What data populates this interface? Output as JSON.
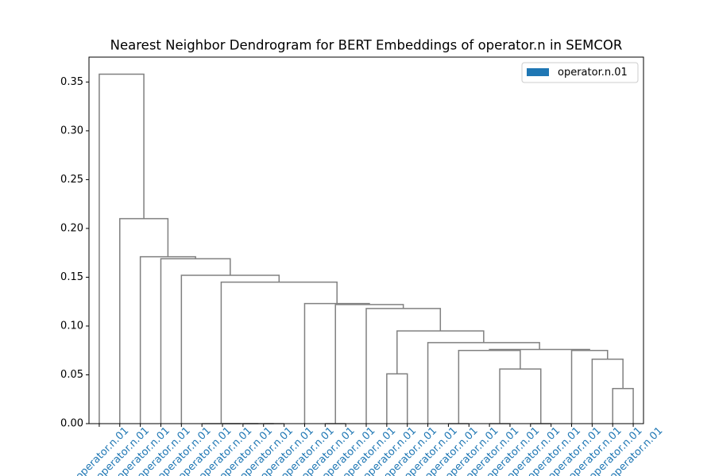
{
  "chart_data": {
    "type": "dendrogram",
    "title": "Nearest Neighbor Dendrogram for BERT Embeddings of operator.n in SEMCOR",
    "link_color": "#808080",
    "label_color": "#1f77b4",
    "legend": {
      "label": "operator.n.01",
      "color": "#1f77b4",
      "loc": "upper right"
    },
    "xlim": [
      0,
      270
    ],
    "ylim": [
      0,
      0.3755
    ],
    "yticks": [
      {
        "value": 0,
        "label": "0.00"
      },
      {
        "value": 0.05,
        "label": "0.05"
      },
      {
        "value": 0.1,
        "label": "0.10"
      },
      {
        "value": 0.15,
        "label": "0.15"
      },
      {
        "value": 0.2,
        "label": "0.20"
      },
      {
        "value": 0.25,
        "label": "0.25"
      },
      {
        "value": 0.3,
        "label": "0.30"
      },
      {
        "value": 0.35,
        "label": "0.35"
      }
    ],
    "xticks": [
      {
        "value": 5,
        "label": "operator.n.01"
      },
      {
        "value": 15,
        "label": "operator.n.01"
      },
      {
        "value": 25,
        "label": "operator.n.01"
      },
      {
        "value": 35,
        "label": "operator.n.01"
      },
      {
        "value": 45,
        "label": "operator.n.01"
      },
      {
        "value": 55,
        "label": "operator.n.01"
      },
      {
        "value": 65,
        "label": "operator.n.01"
      },
      {
        "value": 75,
        "label": "operator.n.01"
      },
      {
        "value": 85,
        "label": "operator.n.01"
      },
      {
        "value": 95,
        "label": "operator.n.01"
      },
      {
        "value": 105,
        "label": "operator.n.01"
      },
      {
        "value": 115,
        "label": "operator.n.01"
      },
      {
        "value": 125,
        "label": "operator.n.01"
      },
      {
        "value": 135,
        "label": "operator.n.01"
      },
      {
        "value": 145,
        "label": "operator.n.01"
      },
      {
        "value": 155,
        "label": "operator.n.01"
      },
      {
        "value": 165,
        "label": "operator.n.01"
      },
      {
        "value": 175,
        "label": "operator.n.01"
      },
      {
        "value": 185,
        "label": "operator.n.01"
      },
      {
        "value": 195,
        "label": "operator.n.01"
      },
      {
        "value": 205,
        "label": "operator.n.01"
      },
      {
        "value": 215,
        "label": "operator.n.01"
      },
      {
        "value": 225,
        "label": "operator.n.01"
      },
      {
        "value": 235,
        "label": "operator.n.01"
      },
      {
        "value": 245,
        "label": "operator.n.01"
      },
      {
        "value": 255,
        "label": "operator.n.01"
      },
      {
        "value": 265,
        "label": "operator.n.01"
      }
    ],
    "icoord": [
      [
        85,
        85,
        95,
        95
      ],
      [
        75,
        75,
        90,
        90
      ],
      [
        65,
        65,
        82.5,
        82.5
      ],
      [
        55,
        55,
        73.75,
        73.75
      ],
      [
        115,
        115,
        125,
        125
      ],
      [
        145,
        145,
        155,
        155
      ],
      [
        175,
        175,
        185,
        185
      ],
      [
        195,
        195,
        205,
        205
      ],
      [
        215,
        215,
        225,
        225
      ],
      [
        200,
        200,
        220,
        220
      ],
      [
        180,
        180,
        210,
        210
      ],
      [
        255,
        255,
        265,
        265
      ],
      [
        245,
        245,
        260,
        260
      ],
      [
        235,
        235,
        252.5,
        252.5
      ],
      [
        195,
        195,
        243.75,
        243.75
      ],
      [
        165,
        165,
        219.375,
        219.375
      ],
      [
        150,
        150,
        192.1875,
        192.1875
      ],
      [
        135,
        135,
        171.09375,
        171.09375
      ],
      [
        120,
        120,
        153.046875,
        153.046875
      ],
      [
        105,
        105,
        136.5234375,
        136.5234375
      ],
      [
        64.375,
        64.375,
        120.76171875,
        120.76171875
      ],
      [
        45,
        45,
        92.568359375,
        92.568359375
      ],
      [
        35,
        35,
        68.7841796875,
        68.7841796875
      ],
      [
        25,
        25,
        51.89208984375,
        51.89208984375
      ],
      [
        15,
        15,
        38.446044921875,
        38.446044921875
      ],
      [
        5,
        5,
        26.7230224609375,
        26.7230224609375
      ]
    ],
    "dcoord": [
      [
        0,
        0,
        0,
        0
      ],
      [
        0,
        0,
        0,
        0
      ],
      [
        0,
        0,
        0,
        0
      ],
      [
        0,
        0,
        0,
        0
      ],
      [
        0,
        0,
        0,
        0
      ],
      [
        0,
        0.051,
        0.051,
        0
      ],
      [
        0,
        0,
        0,
        0
      ],
      [
        0,
        0,
        0,
        0
      ],
      [
        0,
        0,
        0,
        0
      ],
      [
        0,
        0.056,
        0.056,
        0
      ],
      [
        0,
        0.075,
        0.075,
        0.056
      ],
      [
        0,
        0.036,
        0.036,
        0
      ],
      [
        0,
        0.066,
        0.066,
        0.036
      ],
      [
        0,
        0.075,
        0.075,
        0.066
      ],
      [
        0.075,
        0.076,
        0.076,
        0.075
      ],
      [
        0,
        0.083,
        0.083,
        0.076
      ],
      [
        0.051,
        0.095,
        0.095,
        0.083
      ],
      [
        0,
        0.118,
        0.118,
        0.095
      ],
      [
        0,
        0.122,
        0.122,
        0.118
      ],
      [
        0,
        0.123,
        0.123,
        0.122
      ],
      [
        0,
        0.145,
        0.145,
        0.123
      ],
      [
        0,
        0.152,
        0.152,
        0.145
      ],
      [
        0,
        0.169,
        0.169,
        0.152
      ],
      [
        0,
        0.171,
        0.171,
        0.169
      ],
      [
        0,
        0.21,
        0.21,
        0.171
      ],
      [
        0,
        0.358,
        0.358,
        0.21
      ]
    ]
  }
}
